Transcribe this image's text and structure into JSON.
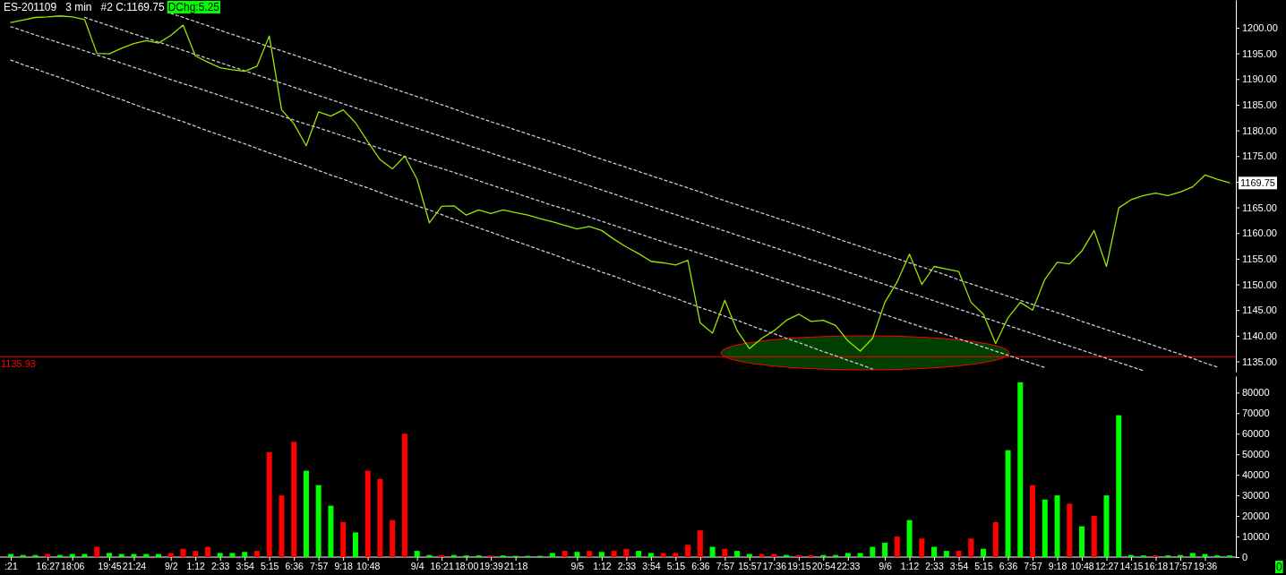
{
  "chart_data": [
    {
      "type": "line",
      "title": "ES-201109   3 min   #2 C:1169.75",
      "annotations": [
        "DChg:5.25",
        {
          "text": "1169.75",
          "y": 1169.75
        }
      ],
      "categories": [
        null,
        null,
        null,
        null,
        null,
        null,
        null,
        null,
        null,
        null,
        null,
        null,
        null,
        null,
        null,
        null,
        null,
        null,
        null,
        null,
        null,
        null,
        null,
        null,
        null,
        null,
        null,
        null,
        null,
        null,
        null,
        null,
        null,
        null,
        null,
        null,
        null,
        null,
        null,
        null,
        null,
        null,
        null,
        null,
        null,
        null,
        null,
        null,
        null,
        null,
        null,
        null,
        null,
        null,
        null,
        null,
        null,
        null,
        null,
        null,
        null,
        null,
        null,
        null,
        null,
        null,
        null,
        null,
        null,
        null,
        null,
        null,
        null,
        null,
        null,
        null,
        null,
        null,
        null,
        null,
        null,
        null,
        null,
        null,
        null,
        null,
        null,
        null,
        null,
        null,
        null,
        null,
        null,
        null,
        null,
        null,
        null,
        null,
        null,
        null
      ],
      "series": [
        {
          "color": "#99e600",
          "values": [
            1201.0,
            1201.5,
            1202.0,
            1202.1,
            1202.3,
            1202.1,
            1201.6,
            1195.0,
            1194.9,
            1196.0,
            1196.9,
            1197.5,
            1197.0,
            1198.5,
            1200.5,
            1194.5,
            1193.3,
            1192.2,
            1191.8,
            1191.5,
            1192.5,
            1198.4,
            1184.0,
            1181.3,
            1177.0,
            1183.6,
            1182.8,
            1184.0,
            1181.5,
            1177.8,
            1174.3,
            1172.5,
            1175.0,
            1170.5,
            1162.0,
            1165.2,
            1165.3,
            1163.5,
            1164.5,
            1163.8,
            1164.5,
            1164.0,
            1163.5,
            1162.8,
            1162.2,
            1161.5,
            1160.8,
            1161.3,
            1160.5,
            1158.8,
            1157.3,
            1156.0,
            1154.5,
            1154.2,
            1153.8,
            1154.7,
            1142.5,
            1140.5,
            1146.9,
            1141.0,
            1137.5,
            1139.5,
            1141.0,
            1143.0,
            1144.2,
            1142.8,
            1143.0,
            1142.0,
            1139.0,
            1137.0,
            1139.5,
            1146.5,
            1150.5,
            1155.9,
            1150.0,
            1153.5,
            1153.0,
            1152.5,
            1146.5,
            1144.2,
            1138.5,
            1143.5,
            1146.5,
            1145.0,
            1151.0,
            1154.3,
            1154.0,
            1156.5,
            1160.5,
            1153.5,
            1164.9,
            1166.5,
            1167.3,
            1167.8,
            1167.3,
            1168.0,
            1169.0,
            1171.3,
            1170.5,
            1169.8
          ]
        },
        {
          "type": "line",
          "color": "#c8c8d8",
          "line_style": "dashed",
          "values": [
            null,
            null,
            null,
            null,
            null,
            null,
            null,
            null,
            null,
            null,
            null,
            null,
            null,
            1202.8,
            1202.0,
            1201.2,
            1200.4,
            1199.5,
            1198.7,
            1197.9,
            1197.1,
            1196.3,
            1195.5,
            1194.7,
            1193.9,
            1193.1,
            1192.3,
            1191.4,
            1190.6,
            1189.8,
            1189.0,
            1188.2,
            1187.4,
            1186.6,
            1185.8,
            1185.0,
            1184.2,
            1183.3,
            1182.5,
            1181.7,
            1180.9,
            1180.1,
            1179.3,
            1178.5,
            1177.7,
            1176.9,
            1176.1,
            1175.2,
            1174.4,
            1173.6,
            1172.8,
            1172.0,
            1171.2,
            1170.4,
            1169.6,
            1168.8,
            1168.0,
            1167.1,
            1166.3,
            1165.5,
            1164.7,
            1163.9,
            1163.1,
            1162.3,
            1161.5,
            1160.7,
            1159.9,
            1159.0,
            1158.2,
            1157.4,
            1156.6,
            1155.8,
            1155.0,
            1154.2,
            1153.4,
            1152.6,
            1151.8,
            1150.9,
            1150.1,
            1149.3,
            1148.5,
            1147.7,
            1146.9,
            1146.1,
            1145.3,
            1144.5,
            1143.7,
            1142.8,
            1142.0,
            1141.2,
            1140.4,
            1139.6,
            1138.8,
            1138.0,
            1137.2,
            1136.4,
            1135.6,
            1134.7,
            1133.9,
            null
          ]
        },
        {
          "type": "line",
          "color": "#c8c8d8",
          "line_style": "dashed",
          "values": [
            null,
            null,
            null,
            null,
            null,
            null,
            1202.0,
            1201.2,
            1200.4,
            1199.6,
            1198.8,
            1198.0,
            1197.2,
            1196.4,
            1195.6,
            1194.8,
            1194.0,
            1193.2,
            1192.4,
            1191.6,
            1190.8,
            1190.0,
            1189.2,
            1188.4,
            1187.6,
            1186.8,
            1186.0,
            1185.2,
            1184.4,
            1183.6,
            1182.8,
            1182.0,
            1181.2,
            1180.4,
            1179.6,
            1178.8,
            1178.0,
            1177.2,
            1176.4,
            1175.6,
            1174.8,
            1174.0,
            1173.2,
            1172.4,
            1171.6,
            1170.8,
            1170.0,
            1169.2,
            1168.4,
            1167.6,
            1166.8,
            1166.0,
            1165.2,
            1164.4,
            1163.6,
            1162.8,
            1162.0,
            1161.2,
            1160.4,
            1159.6,
            1158.8,
            1158.0,
            1157.2,
            1156.4,
            1155.6,
            1154.8,
            1154.0,
            1153.2,
            1152.4,
            1151.6,
            1150.8,
            1150.0,
            1149.2,
            1148.4,
            1147.6,
            1146.8,
            1146.0,
            1145.2,
            1144.4,
            1143.6,
            1142.8,
            1142.0,
            1141.2,
            1140.4,
            1139.6,
            1138.8,
            1138.0,
            1137.2,
            1136.4,
            1135.6,
            1134.8,
            1134.0,
            1133.2,
            null,
            null,
            null,
            null,
            null,
            null,
            null
          ]
        },
        {
          "type": "line",
          "color": "#c8c8d8",
          "line_style": "dashed",
          "values": [
            1200.2,
            1199.4,
            1198.6,
            1197.8,
            1197.0,
            1196.3,
            1195.5,
            1194.7,
            1193.9,
            1193.1,
            1192.3,
            1191.5,
            1190.7,
            1189.9,
            1189.1,
            1188.4,
            1187.6,
            1186.8,
            1186.0,
            1185.2,
            1184.4,
            1183.6,
            1182.8,
            1182.0,
            1181.2,
            1180.5,
            1179.7,
            1178.9,
            1178.1,
            1177.3,
            1176.5,
            1175.7,
            1174.9,
            1174.1,
            1173.3,
            1172.6,
            1171.8,
            1171.0,
            1170.2,
            1169.4,
            1168.6,
            1167.8,
            1167.0,
            1166.2,
            1165.4,
            1164.7,
            1163.9,
            1163.1,
            1162.3,
            1161.5,
            1160.7,
            1159.9,
            1159.1,
            1158.3,
            1157.5,
            1156.8,
            1156.0,
            1155.2,
            1154.4,
            1153.6,
            1152.8,
            1152.0,
            1151.2,
            1150.4,
            1149.6,
            1148.9,
            1148.1,
            1147.3,
            1146.5,
            1145.7,
            1144.9,
            1144.1,
            1143.3,
            1142.5,
            1141.7,
            1141.0,
            1140.2,
            1139.4,
            1138.6,
            1137.8,
            1137.0,
            1136.2,
            1135.4,
            1134.6,
            1133.8,
            null,
            null,
            null,
            null,
            null,
            null,
            null,
            null,
            null,
            null,
            null,
            null,
            null,
            null,
            null
          ]
        },
        {
          "type": "line",
          "color": "#c8c8d8",
          "line_style": "dashed",
          "values": [
            1193.7,
            1192.8,
            1192.0,
            1191.1,
            1190.3,
            1189.4,
            1188.5,
            1187.7,
            1186.8,
            1186.0,
            1185.1,
            1184.2,
            1183.4,
            1182.5,
            1181.7,
            1180.8,
            1179.9,
            1179.1,
            1178.2,
            1177.4,
            1176.5,
            1175.6,
            1174.8,
            1173.9,
            1173.1,
            1172.2,
            1171.3,
            1170.5,
            1169.6,
            1168.8,
            1167.9,
            1167.0,
            1166.2,
            1165.3,
            1164.5,
            1163.6,
            1162.7,
            1161.9,
            1161.0,
            1160.2,
            1159.3,
            1158.4,
            1157.6,
            1156.7,
            1155.9,
            1155.0,
            1154.1,
            1153.3,
            1152.4,
            1151.6,
            1150.7,
            1149.8,
            1149.0,
            1148.1,
            1147.3,
            1146.4,
            1145.5,
            1144.7,
            1143.8,
            1143.0,
            1142.1,
            1141.2,
            1140.4,
            1139.5,
            1138.7,
            1137.8,
            1136.9,
            1136.1,
            1135.2,
            1134.4,
            1133.5,
            null,
            null,
            null,
            null,
            null,
            null,
            null,
            null,
            null,
            null,
            null,
            null,
            null,
            null,
            null,
            null,
            null,
            null,
            null,
            null,
            null,
            null,
            null,
            null,
            null,
            null,
            null,
            null,
            null
          ]
        }
      ],
      "ylim": [
        1133,
        1205.4
      ],
      "yticks": [
        {
          "value": 1135,
          "label": "1135.00"
        },
        {
          "value": 1140,
          "label": "1140.00"
        },
        {
          "value": 1145,
          "label": "1145.00"
        },
        {
          "value": 1150,
          "label": "1150.00"
        },
        {
          "value": 1155,
          "label": "1155.00"
        },
        {
          "value": 1160,
          "label": "1160.00"
        },
        {
          "value": 1165,
          "label": "1165.00"
        },
        {
          "value": 1170,
          "label": null
        },
        {
          "value": 1175,
          "label": "1175.00"
        },
        {
          "value": 1180,
          "label": "1180.00"
        },
        {
          "value": 1185,
          "label": "1185.00"
        },
        {
          "value": 1190,
          "label": "1190.00"
        },
        {
          "value": 1195,
          "label": "1195.00"
        },
        {
          "value": 1200,
          "label": "1200.00"
        }
      ],
      "ref_lines": [
        {
          "axis": "y",
          "value": 1135.93,
          "label": "1135.93",
          "color": "#ff0000"
        }
      ],
      "tick_labels": "y"
    },
    {
      "type": "bar",
      "annotations": [
        "0"
      ],
      "categories": [
        ":21",
        null,
        null,
        "16:27",
        null,
        "18:06",
        null,
        null,
        "19:45",
        null,
        "21:24",
        null,
        null,
        "9/2",
        null,
        "1:12",
        null,
        "2:33",
        null,
        "3:54",
        null,
        "5:15",
        null,
        "6:36",
        null,
        "7:57",
        null,
        "9:18",
        null,
        "10:48",
        null,
        null,
        null,
        "9/4",
        null,
        "16:21",
        null,
        "18:00",
        null,
        "19:39",
        null,
        "21:18",
        null,
        null,
        null,
        null,
        "9/5",
        null,
        "1:12",
        null,
        "2:33",
        null,
        "3:54",
        null,
        "5:15",
        null,
        "6:36",
        null,
        "7:57",
        null,
        "15:57",
        null,
        "17:36",
        null,
        "19:15",
        null,
        "20:54",
        null,
        "22:33",
        null,
        null,
        "9/6",
        null,
        "1:12",
        null,
        "2:33",
        null,
        "3:54",
        null,
        "5:15",
        null,
        "6:36",
        null,
        "7:57",
        null,
        "9:18",
        null,
        "10:48",
        null,
        "12:27",
        null,
        "14:15",
        null,
        "16:18",
        null,
        "17:57",
        null,
        "19:36",
        null,
        null
      ],
      "values": [
        1500,
        1000,
        1000,
        1500,
        1000,
        1500,
        1500,
        5000,
        2000,
        1500,
        1500,
        1500,
        1500,
        2000,
        4000,
        3000,
        5000,
        2000,
        2000,
        2500,
        3000,
        51000,
        30000,
        56000,
        42000,
        35000,
        25000,
        17000,
        12000,
        42000,
        38000,
        18000,
        60000,
        3000,
        1000,
        1000,
        1000,
        800,
        800,
        800,
        800,
        600,
        600,
        600,
        2000,
        3000,
        2500,
        3000,
        2500,
        3000,
        4000,
        3000,
        2000,
        2000,
        2000,
        6000,
        13000,
        5000,
        4000,
        3000,
        1500,
        1500,
        1500,
        1000,
        1000,
        1000,
        1000,
        1000,
        2000,
        2000,
        5000,
        7000,
        10000,
        18000,
        9000,
        5000,
        3000,
        3000,
        9000,
        4000,
        17000,
        52000,
        85000,
        35000,
        28000,
        30000,
        26000,
        15000,
        20000,
        30000,
        69000,
        1000,
        800,
        800,
        800,
        1000,
        2000,
        1500,
        800,
        800
      ],
      "colors": [
        "#00ff00",
        "#00ff00",
        "#00ff00",
        "#ff0000",
        "#00ff00",
        "#00ff00",
        "#00ff00",
        "#ff0000",
        "#00ff00",
        "#00ff00",
        "#00ff00",
        "#00ff00",
        "#00ff00",
        "#ff0000",
        "#ff0000",
        "#ff0000",
        "#ff0000",
        "#00ff00",
        "#00ff00",
        "#00ff00",
        "#ff0000",
        "#ff0000",
        "#ff0000",
        "#ff0000",
        "#00ff00",
        "#00ff00",
        "#00ff00",
        "#ff0000",
        "#00ff00",
        "#ff0000",
        "#ff0000",
        "#ff0000",
        "#ff0000",
        "#00ff00",
        "#00ff00",
        "#ff0000",
        "#00ff00",
        "#00ff00",
        "#00ff00",
        "#ff0000",
        "#00ff00",
        "#00ff00",
        "#00ff00",
        "#00ff00",
        "#00ff00",
        "#ff0000",
        "#00ff00",
        "#ff0000",
        "#00ff00",
        "#ff0000",
        "#ff0000",
        "#00ff00",
        "#00ff00",
        "#ff0000",
        "#ff0000",
        "#ff0000",
        "#ff0000",
        "#00ff00",
        "#ff0000",
        "#00ff00",
        "#00ff00",
        "#ff0000",
        "#ff0000",
        "#00ff00",
        "#ff0000",
        "#ff0000",
        "#00ff00",
        "#00ff00",
        "#00ff00",
        "#00ff00",
        "#00ff00",
        "#00ff00",
        "#ff0000",
        "#00ff00",
        "#ff0000",
        "#00ff00",
        "#00ff00",
        "#ff0000",
        "#ff0000",
        "#00ff00",
        "#ff0000",
        "#00ff00",
        "#00ff00",
        "#ff0000",
        "#00ff00",
        "#00ff00",
        "#ff0000",
        "#00ff00",
        "#ff0000",
        "#00ff00",
        "#00ff00",
        "#00ff00",
        "#00ff00",
        "#ff0000",
        "#00ff00",
        "#00ff00",
        "#00ff00",
        "#00ff00",
        "#00ff00",
        "#00ff00"
      ],
      "ylim": [
        0,
        88000
      ],
      "yticks": [
        0,
        10000,
        20000,
        30000,
        40000,
        50000,
        60000,
        70000,
        80000
      ]
    }
  ]
}
